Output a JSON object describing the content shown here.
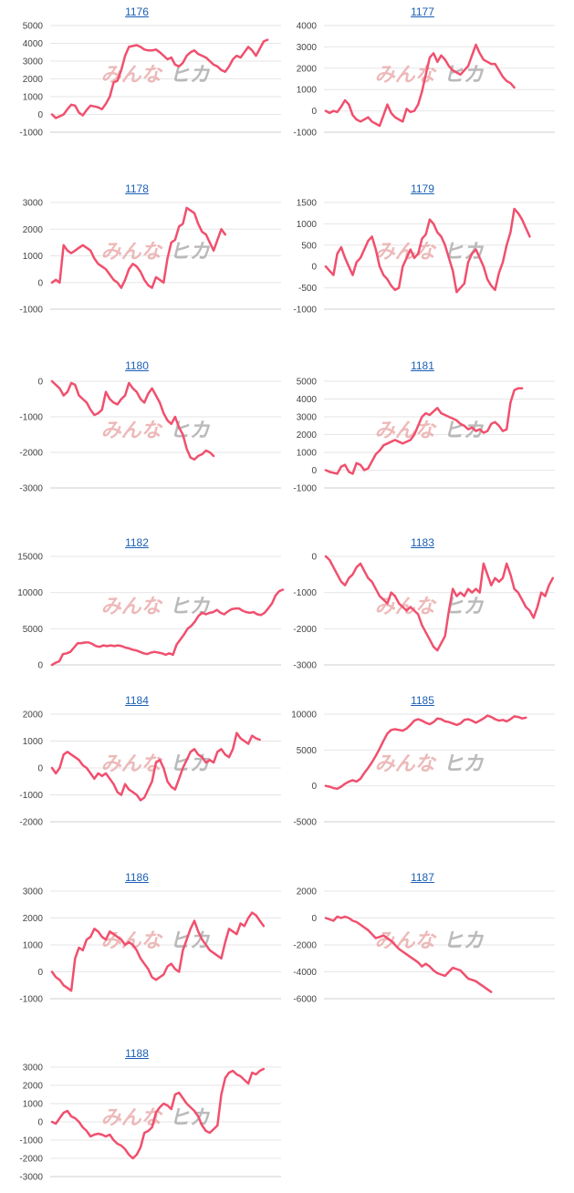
{
  "page": {
    "watermark_left": "みんな",
    "watermark_right": "ヒカ"
  },
  "colors": {
    "line": "#f0506e",
    "title": "#1a5fb4",
    "grid": "#e6e6e6"
  },
  "chart_data": [
    {
      "type": "line",
      "title": "1176",
      "yticks": [
        5000,
        4000,
        3000,
        2000,
        1000,
        0,
        -1000
      ],
      "ylim": [
        -1000,
        5000
      ],
      "y": [
        0,
        -200,
        -100,
        0,
        300,
        550,
        500,
        100,
        -50,
        250,
        500,
        450,
        400,
        300,
        600,
        1000,
        1800,
        1900,
        2500,
        3300,
        3800,
        3850,
        3900,
        3800,
        3650,
        3600,
        3600,
        3650,
        3500,
        3300,
        3100,
        3200,
        2800,
        2700,
        2900,
        3300,
        3500,
        3600,
        3400,
        3300,
        3200,
        3000,
        2800,
        2700,
        2500,
        2400,
        2700,
        3100,
        3300,
        3200,
        3500,
        3800,
        3600,
        3300,
        3700,
        4100,
        4200
      ]
    },
    {
      "type": "line",
      "title": "1177",
      "yticks": [
        4000,
        3000,
        2000,
        1000,
        0,
        -1000
      ],
      "ylim": [
        -1000,
        4000
      ],
      "y": [
        0,
        -100,
        0,
        -50,
        200,
        500,
        300,
        -200,
        -400,
        -500,
        -400,
        -300,
        -500,
        -600,
        -700,
        -200,
        300,
        -100,
        -300,
        -400,
        -500,
        100,
        -50,
        0,
        300,
        900,
        1700,
        2500,
        2700,
        2300,
        2600,
        2400,
        2100,
        1900,
        1800,
        1700,
        1900,
        2100,
        2600,
        3100,
        2700,
        2400,
        2300,
        2200,
        2200,
        1900,
        1600,
        1400,
        1300,
        1100
      ]
    },
    {
      "type": "line",
      "title": "1178",
      "yticks": [
        3000,
        2000,
        1000,
        0,
        -1000
      ],
      "ylim": [
        -1000,
        3000
      ],
      "y": [
        0,
        100,
        0,
        1400,
        1200,
        1100,
        1200,
        1300,
        1400,
        1300,
        1200,
        900,
        700,
        600,
        500,
        300,
        100,
        0,
        -200,
        100,
        500,
        700,
        600,
        400,
        100,
        -100,
        -200,
        200,
        100,
        0,
        900,
        1500,
        1600,
        2100,
        2200,
        2800,
        2700,
        2600,
        2200,
        1900,
        1800,
        1500,
        1200,
        1600,
        2000,
        1800
      ]
    },
    {
      "type": "line",
      "title": "1179",
      "yticks": [
        1500,
        1000,
        500,
        0,
        -500,
        -1000
      ],
      "ylim": [
        -1000,
        1500
      ],
      "y": [
        0,
        -100,
        -200,
        300,
        450,
        200,
        0,
        -200,
        100,
        200,
        400,
        600,
        700,
        400,
        0,
        -200,
        -300,
        -450,
        -550,
        -500,
        0,
        200,
        400,
        200,
        300,
        650,
        750,
        1100,
        1000,
        800,
        700,
        500,
        200,
        -100,
        -600,
        -500,
        -400,
        100,
        300,
        400,
        200,
        0,
        -300,
        -450,
        -550,
        -150,
        100,
        500,
        800,
        1350,
        1250,
        1100,
        900,
        700
      ]
    },
    {
      "type": "line",
      "title": "1180",
      "yticks": [
        0,
        -1000,
        -2000,
        -3000
      ],
      "ylim": [
        -3000,
        0
      ],
      "y": [
        0,
        -100,
        -200,
        -400,
        -300,
        -50,
        -100,
        -400,
        -500,
        -600,
        -800,
        -950,
        -900,
        -800,
        -300,
        -500,
        -600,
        -650,
        -500,
        -400,
        -50,
        -200,
        -300,
        -500,
        -600,
        -350,
        -200,
        -400,
        -600,
        -900,
        -1100,
        -1200,
        -1000,
        -1300,
        -1500,
        -1900,
        -2150,
        -2200,
        -2100,
        -2050,
        -1950,
        -2000,
        -2100
      ]
    },
    {
      "type": "line",
      "title": "1181",
      "yticks": [
        5000,
        4000,
        3000,
        2000,
        1000,
        0,
        -1000
      ],
      "ylim": [
        -1000,
        5000
      ],
      "y": [
        0,
        -100,
        -150,
        -200,
        200,
        300,
        -100,
        -200,
        400,
        300,
        0,
        100,
        500,
        900,
        1100,
        1400,
        1500,
        1600,
        1700,
        1600,
        1500,
        1600,
        1700,
        2000,
        2500,
        3000,
        3200,
        3100,
        3300,
        3500,
        3200,
        3100,
        3000,
        2900,
        2800,
        2600,
        2500,
        2300,
        2400,
        2200,
        2300,
        2100,
        2200,
        2600,
        2700,
        2500,
        2200,
        2300,
        3800,
        4500,
        4600,
        4600
      ]
    },
    {
      "type": "line",
      "title": "1182",
      "yticks": [
        15000,
        10000,
        5000,
        0
      ],
      "ylim": [
        0,
        15000
      ],
      "y": [
        0,
        300,
        500,
        1500,
        1600,
        1800,
        2400,
        3000,
        3000,
        3100,
        3100,
        2900,
        2600,
        2500,
        2700,
        2600,
        2700,
        2600,
        2700,
        2600,
        2400,
        2300,
        2100,
        2000,
        1800,
        1600,
        1500,
        1700,
        1800,
        1700,
        1600,
        1400,
        1600,
        1400,
        2800,
        3500,
        4200,
        5000,
        5400,
        6000,
        6800,
        7200,
        7000,
        7200,
        7300,
        7600,
        7200,
        7000,
        7400,
        7700,
        7800,
        7800,
        7500,
        7300,
        7200,
        7300,
        7000,
        6900,
        7200,
        7800,
        8500,
        9600,
        10200,
        10400
      ]
    },
    {
      "type": "line",
      "title": "1183",
      "yticks": [
        0,
        -1000,
        -2000,
        -3000
      ],
      "ylim": [
        -3000,
        0
      ],
      "y": [
        0,
        -100,
        -300,
        -500,
        -700,
        -800,
        -600,
        -500,
        -300,
        -200,
        -400,
        -600,
        -700,
        -900,
        -1100,
        -1200,
        -1300,
        -1000,
        -1100,
        -1300,
        -1400,
        -1500,
        -1400,
        -1500,
        -1600,
        -1900,
        -2100,
        -2300,
        -2500,
        -2600,
        -2400,
        -2200,
        -1500,
        -900,
        -1100,
        -1000,
        -1100,
        -900,
        -1000,
        -900,
        -1000,
        -200,
        -500,
        -800,
        -600,
        -700,
        -600,
        -200,
        -500,
        -900,
        -1000,
        -1200,
        -1400,
        -1500,
        -1700,
        -1400,
        -1000,
        -1100,
        -800,
        -600
      ]
    },
    {
      "type": "line",
      "title": "1184",
      "yticks": [
        2000,
        1000,
        0,
        -1000,
        -2000
      ],
      "ylim": [
        -2000,
        2000
      ],
      "y": [
        0,
        -200,
        0,
        500,
        600,
        500,
        400,
        300,
        100,
        0,
        -200,
        -400,
        -200,
        -300,
        -200,
        -400,
        -600,
        -900,
        -1000,
        -600,
        -800,
        -900,
        -1000,
        -1200,
        -1100,
        -800,
        -500,
        200,
        300,
        0,
        -500,
        -700,
        -800,
        -400,
        0,
        300,
        600,
        700,
        500,
        400,
        200,
        300,
        200,
        600,
        700,
        500,
        400,
        700,
        1300,
        1100,
        1000,
        900,
        1200,
        1100,
        1050
      ]
    },
    {
      "type": "line",
      "title": "1185",
      "yticks": [
        10000,
        5000,
        0,
        -5000
      ],
      "ylim": [
        -5000,
        10000
      ],
      "y": [
        0,
        -100,
        -300,
        -400,
        -100,
        300,
        600,
        800,
        600,
        1000,
        1800,
        2500,
        3300,
        4200,
        5200,
        6300,
        7300,
        7800,
        7900,
        7800,
        7700,
        8000,
        8500,
        9100,
        9300,
        9100,
        8800,
        8600,
        8900,
        9400,
        9300,
        9000,
        8900,
        8700,
        8500,
        8700,
        9200,
        9300,
        9100,
        8800,
        9100,
        9400,
        9800,
        9600,
        9300,
        9100,
        9200,
        9000,
        9300,
        9700,
        9600,
        9400,
        9500
      ]
    },
    {
      "type": "line",
      "title": "1186",
      "yticks": [
        3000,
        2000,
        1000,
        0,
        -1000
      ],
      "ylim": [
        -1000,
        3000
      ],
      "y": [
        0,
        -200,
        -300,
        -500,
        -600,
        -700,
        500,
        900,
        800,
        1200,
        1300,
        1600,
        1500,
        1300,
        1200,
        1500,
        1400,
        1300,
        1200,
        1000,
        1100,
        1000,
        800,
        500,
        300,
        100,
        -200,
        -300,
        -200,
        -100,
        200,
        300,
        100,
        0,
        800,
        1200,
        1600,
        1900,
        1500,
        1200,
        1000,
        800,
        700,
        600,
        500,
        1100,
        1600,
        1500,
        1400,
        1800,
        1700,
        2000,
        2200,
        2100,
        1900,
        1700
      ]
    },
    {
      "type": "line",
      "title": "1187",
      "yticks": [
        2000,
        0,
        -2000,
        -4000,
        -6000
      ],
      "ylim": [
        -6000,
        2000
      ],
      "y": [
        0,
        -100,
        -200,
        100,
        0,
        100,
        0,
        -200,
        -300,
        -500,
        -700,
        -900,
        -1200,
        -1500,
        -1400,
        -1300,
        -1500,
        -1700,
        -2000,
        -2300,
        -2500,
        -2700,
        -2900,
        -3100,
        -3300,
        -3600,
        -3400,
        -3600,
        -3900,
        -4100,
        -4200,
        -4300,
        -4000,
        -3700,
        -3800,
        -3900,
        -4200,
        -4500,
        -4600,
        -4700,
        -4900,
        -5100,
        -5300,
        -5500
      ]
    },
    {
      "type": "line",
      "title": "1188",
      "yticks": [
        3000,
        2000,
        1000,
        0,
        -1000,
        -2000,
        -3000
      ],
      "ylim": [
        -3000,
        3000
      ],
      "y": [
        0,
        -100,
        200,
        500,
        600,
        300,
        200,
        0,
        -300,
        -500,
        -800,
        -700,
        -650,
        -700,
        -800,
        -700,
        -1000,
        -1200,
        -1300,
        -1500,
        -1800,
        -2000,
        -1800,
        -1400,
        -600,
        -500,
        -300,
        500,
        800,
        1000,
        900,
        700,
        1500,
        1600,
        1300,
        1000,
        800,
        600,
        300,
        -200,
        -500,
        -600,
        -400,
        -200,
        1500,
        2400,
        2700,
        2800,
        2600,
        2500,
        2300,
        2100,
        2700,
        2600,
        2800,
        2900
      ]
    }
  ]
}
